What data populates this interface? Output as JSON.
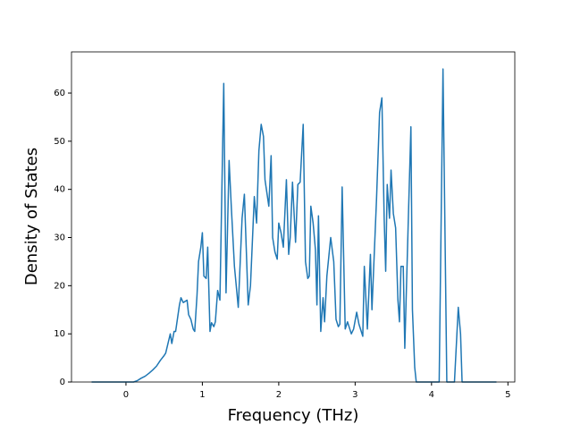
{
  "chart_data": {
    "type": "line",
    "x_label": "Frequency (THz)",
    "y_label": "Density of States",
    "xlim": [
      -0.713,
      5.09
    ],
    "ylim": [
      0,
      68.55
    ],
    "xticks": [
      0,
      1,
      2,
      3,
      4,
      5
    ],
    "yticks": [
      0,
      10,
      20,
      30,
      40,
      50,
      60
    ],
    "series": [
      {
        "color": "#1f77b4",
        "x": [
          -0.45,
          0.1,
          0.15,
          0.2,
          0.25,
          0.3,
          0.35,
          0.4,
          0.45,
          0.5,
          0.52,
          0.55,
          0.58,
          0.6,
          0.63,
          0.65,
          0.7,
          0.72,
          0.75,
          0.8,
          0.82,
          0.85,
          0.88,
          0.9,
          0.93,
          0.95,
          0.98,
          1.0,
          1.02,
          1.05,
          1.07,
          1.1,
          1.12,
          1.15,
          1.17,
          1.2,
          1.23,
          1.28,
          1.31,
          1.35,
          1.38,
          1.42,
          1.47,
          1.52,
          1.55,
          1.6,
          1.63,
          1.68,
          1.71,
          1.74,
          1.77,
          1.8,
          1.82,
          1.87,
          1.9,
          1.92,
          1.95,
          1.98,
          2.0,
          2.03,
          2.06,
          2.1,
          2.13,
          2.15,
          2.18,
          2.22,
          2.25,
          2.28,
          2.32,
          2.35,
          2.38,
          2.4,
          2.42,
          2.45,
          2.48,
          2.5,
          2.52,
          2.55,
          2.58,
          2.6,
          2.63,
          2.68,
          2.72,
          2.75,
          2.78,
          2.8,
          2.83,
          2.87,
          2.9,
          2.95,
          2.98,
          3.02,
          3.05,
          3.1,
          3.12,
          3.16,
          3.2,
          3.22,
          3.28,
          3.32,
          3.35,
          3.38,
          3.4,
          3.42,
          3.45,
          3.47,
          3.5,
          3.53,
          3.56,
          3.58,
          3.6,
          3.63,
          3.65,
          3.7,
          3.73,
          3.75,
          3.78,
          3.8,
          4.1,
          4.15,
          4.2,
          4.3,
          4.35,
          4.38,
          4.4,
          4.85
        ],
        "values": [
          0,
          0,
          0.3,
          0.8,
          1.2,
          1.8,
          2.5,
          3.3,
          4.5,
          5.5,
          6,
          8,
          10,
          8,
          10.5,
          10.5,
          16,
          17.5,
          16.5,
          17,
          14,
          13,
          11,
          10.5,
          18,
          25,
          28,
          31,
          22,
          21.5,
          28,
          10.5,
          12.3,
          11.5,
          12.5,
          19,
          17,
          62,
          18.5,
          46,
          36,
          24,
          15.5,
          34,
          39,
          16,
          20,
          38.5,
          33,
          48,
          53.5,
          51,
          42,
          36.5,
          47,
          30,
          27,
          25.5,
          33,
          31,
          28,
          42,
          26.5,
          30,
          41.5,
          29,
          41,
          41.5,
          53.5,
          25,
          21.5,
          22,
          36.5,
          33,
          27.5,
          16,
          34.5,
          10.5,
          17.5,
          12.5,
          22,
          30,
          25,
          13,
          11.5,
          12,
          40.5,
          11,
          12.5,
          10,
          11,
          14.5,
          12,
          9.5,
          24,
          11,
          26.5,
          15,
          38,
          56,
          59,
          34,
          23,
          41,
          34,
          44,
          35,
          32,
          17,
          12.5,
          24,
          24,
          7,
          36,
          53,
          15,
          3,
          0,
          0,
          65,
          0,
          0,
          15.5,
          10,
          0,
          0
        ]
      }
    ]
  }
}
